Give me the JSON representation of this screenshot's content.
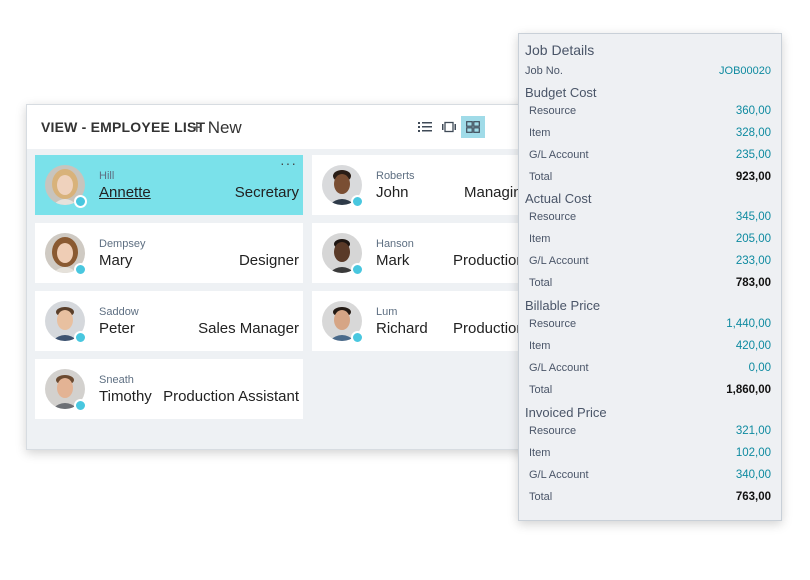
{
  "list": {
    "title": "VIEW - EMPLOYEE LIST",
    "new_label": "New",
    "more_label": "···",
    "employees": [
      {
        "last": "Hill",
        "first": "Annette",
        "title": "Secretary"
      },
      {
        "last": "Roberts",
        "first": "John",
        "title": "Managing"
      },
      {
        "last": "Dempsey",
        "first": "Mary",
        "title": "Designer"
      },
      {
        "last": "Hanson",
        "first": "Mark",
        "title": "Production"
      },
      {
        "last": "Saddow",
        "first": "Peter",
        "title": "Sales Manager"
      },
      {
        "last": "Lum",
        "first": "Richard",
        "title": "Production"
      },
      {
        "last": "Sneath",
        "first": "Timothy",
        "title": "Production Assistant"
      }
    ],
    "icons": [
      "list-view-icon",
      "tile-view-icon",
      "brick-view-icon"
    ],
    "colors": {
      "selected_tile": "#7ae1ea",
      "active_view_button": "#a0dbe8",
      "status_dot": "#49c7df"
    }
  },
  "job_details": {
    "title": "Job Details",
    "job_no_label": "Job No.",
    "job_no": "JOB00020",
    "sections": [
      {
        "title": "Budget Cost",
        "rows": [
          {
            "label": "Resource",
            "value": "360,00"
          },
          {
            "label": "Item",
            "value": "328,00"
          },
          {
            "label": "G/L Account",
            "value": "235,00"
          },
          {
            "label": "Total",
            "value": "923,00"
          }
        ]
      },
      {
        "title": "Actual Cost",
        "rows": [
          {
            "label": "Resource",
            "value": "345,00"
          },
          {
            "label": "Item",
            "value": "205,00"
          },
          {
            "label": "G/L Account",
            "value": "233,00"
          },
          {
            "label": "Total",
            "value": "783,00"
          }
        ]
      },
      {
        "title": "Billable Price",
        "rows": [
          {
            "label": "Resource",
            "value": "1,440,00"
          },
          {
            "label": "Item",
            "value": "420,00"
          },
          {
            "label": "G/L Account",
            "value": "0,00"
          },
          {
            "label": "Total",
            "value": "1,860,00"
          }
        ]
      },
      {
        "title": "Invoiced Price",
        "rows": [
          {
            "label": "Resource",
            "value": "321,00"
          },
          {
            "label": "Item",
            "value": "102,00"
          },
          {
            "label": "G/L Account",
            "value": "340,00"
          },
          {
            "label": "Total",
            "value": "763,00"
          }
        ]
      }
    ],
    "colors": {
      "value": "#0e8aa0",
      "total": "#111111"
    }
  }
}
